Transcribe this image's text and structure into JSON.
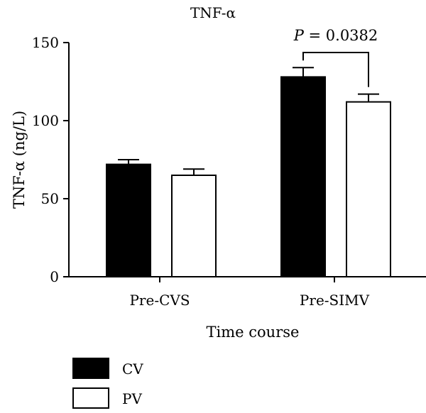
{
  "chart_data": {
    "type": "bar",
    "title": "TNF-α",
    "xlabel": "Time course",
    "ylabel": "TNF-α (ng/L)",
    "categories": [
      "Pre-CVS",
      "Pre-SIMV"
    ],
    "ylim": [
      0,
      150
    ],
    "yticks": [
      0,
      50,
      100,
      150
    ],
    "series": [
      {
        "name": "CV",
        "values": [
          72,
          128
        ],
        "error": [
          3,
          6
        ],
        "color": "#000000"
      },
      {
        "name": "PV",
        "values": [
          65,
          112
        ],
        "error": [
          4,
          5
        ],
        "color": "#ffffff"
      }
    ],
    "annotation": {
      "p_label": "P",
      "text": " = 0.0382"
    },
    "legend_position": "bottom-left",
    "grid": false
  }
}
